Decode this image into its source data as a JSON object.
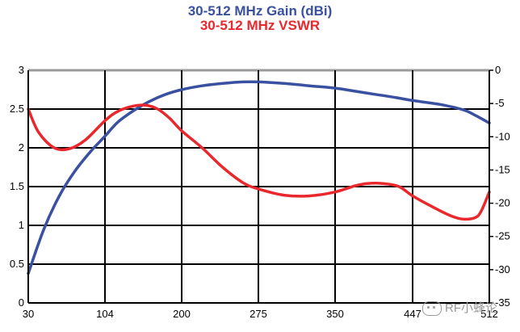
{
  "chart_data": {
    "type": "line",
    "title": "30-512 MHz Gain (dBi)",
    "subtitle": "30-512 MHz VSWR",
    "x_ticks": [
      "30",
      "104",
      "200",
      "275",
      "350",
      "447",
      "512"
    ],
    "left_axis": {
      "ylim": [
        0,
        3
      ],
      "ticks": [
        "0",
        "0.5",
        "1",
        "1.5",
        "2",
        "2.5",
        "3"
      ]
    },
    "right_axis": {
      "ylim": [
        -35,
        0
      ],
      "ticks": [
        "0",
        "-5",
        "-10",
        "-15",
        "-20",
        "-25",
        "-30",
        "-35"
      ]
    },
    "grid": true,
    "series": [
      {
        "color": "#3a50a0",
        "axis": "left",
        "x": [
          30,
          45,
          60,
          75,
          90,
          104,
          120,
          140,
          160,
          180,
          200,
          220,
          240,
          260,
          275,
          300,
          325,
          350,
          375,
          400,
          425,
          447,
          470,
          490,
          500,
          512
        ],
        "values": [
          0.38,
          0.95,
          1.38,
          1.7,
          1.95,
          2.15,
          2.33,
          2.48,
          2.6,
          2.69,
          2.75,
          2.8,
          2.83,
          2.85,
          2.85,
          2.83,
          2.8,
          2.77,
          2.73,
          2.69,
          2.65,
          2.61,
          2.56,
          2.49,
          2.42,
          2.32
        ]
      },
      {
        "color": "#e8282c",
        "axis": "left",
        "x": [
          30,
          40,
          55,
          70,
          85,
          104,
          120,
          140,
          155,
          170,
          185,
          200,
          220,
          240,
          260,
          275,
          300,
          325,
          350,
          375,
          390,
          410,
          430,
          447,
          465,
          480,
          490,
          500,
          505,
          512
        ],
        "values": [
          2.5,
          2.2,
          2.0,
          1.99,
          2.1,
          2.35,
          2.47,
          2.54,
          2.55,
          2.5,
          2.38,
          2.22,
          2.0,
          1.75,
          1.55,
          1.47,
          1.39,
          1.38,
          1.43,
          1.51,
          1.54,
          1.54,
          1.5,
          1.38,
          1.23,
          1.12,
          1.08,
          1.1,
          1.18,
          1.43
        ]
      }
    ]
  },
  "watermark": "RF小蜂论"
}
